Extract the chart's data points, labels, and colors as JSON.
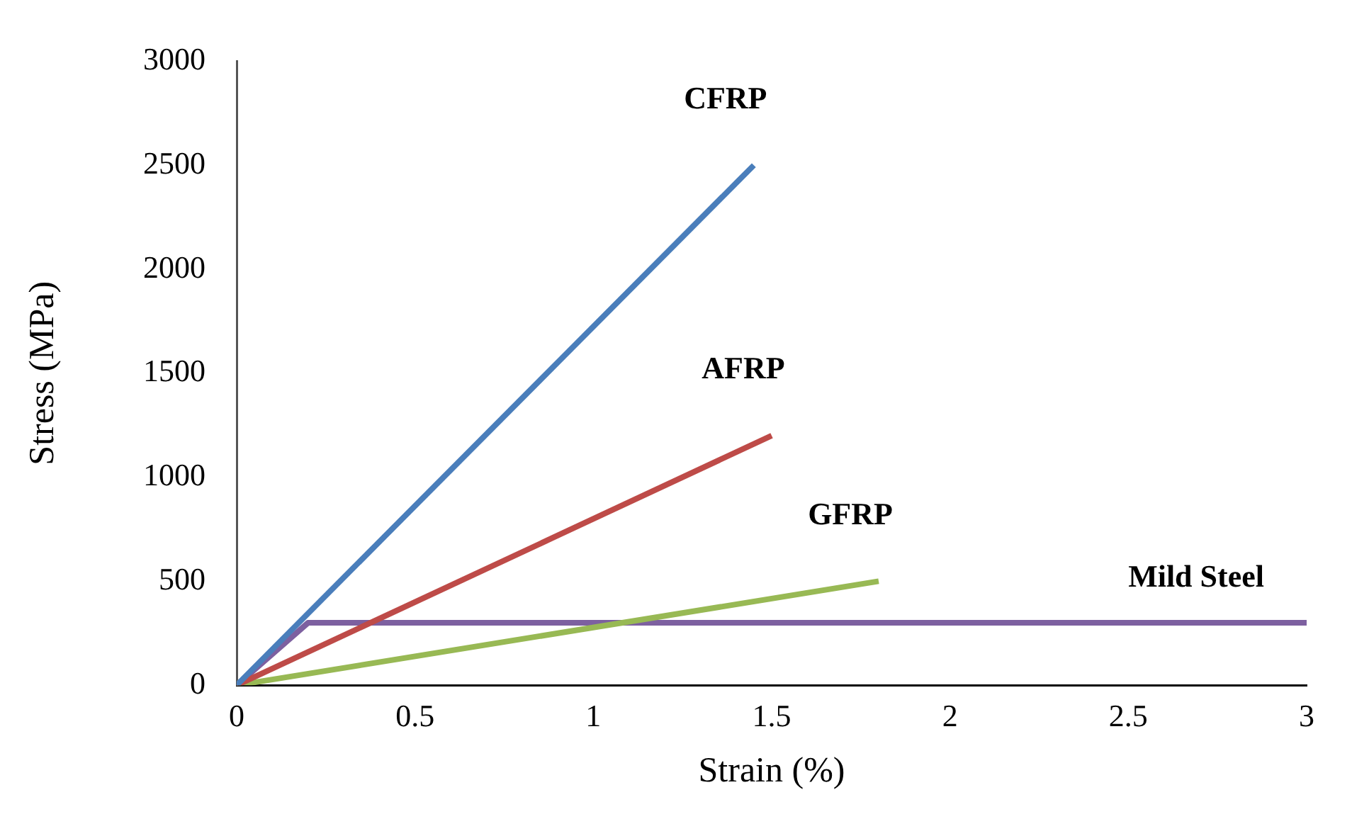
{
  "chart_data": {
    "type": "line",
    "xlabel": "Strain (%)",
    "ylabel": "Stress (MPa)",
    "xlim": [
      0,
      3
    ],
    "xticks": [
      0,
      0.5,
      1,
      1.5,
      2,
      2.5,
      3
    ],
    "ylim": [
      0,
      3000
    ],
    "yticks": [
      0,
      500,
      1000,
      1500,
      2000,
      2500,
      3000
    ],
    "grid": false,
    "legend": false,
    "marker": "none",
    "line_style": "solid",
    "series": [
      {
        "name": "CFRP",
        "color": "#4a7ebb",
        "x": [
          0,
          1.45
        ],
        "values": [
          0,
          2500
        ]
      },
      {
        "name": "AFRP",
        "color": "#be4b48",
        "x": [
          0,
          1.5
        ],
        "values": [
          0,
          1200
        ]
      },
      {
        "name": "GFRP",
        "color": "#98b954",
        "x": [
          0,
          1.8
        ],
        "values": [
          0,
          500
        ]
      },
      {
        "name": "Mild Steel",
        "color": "#7d60a0",
        "x": [
          0,
          0.2,
          3
        ],
        "values": [
          0,
          300,
          300
        ]
      }
    ]
  }
}
